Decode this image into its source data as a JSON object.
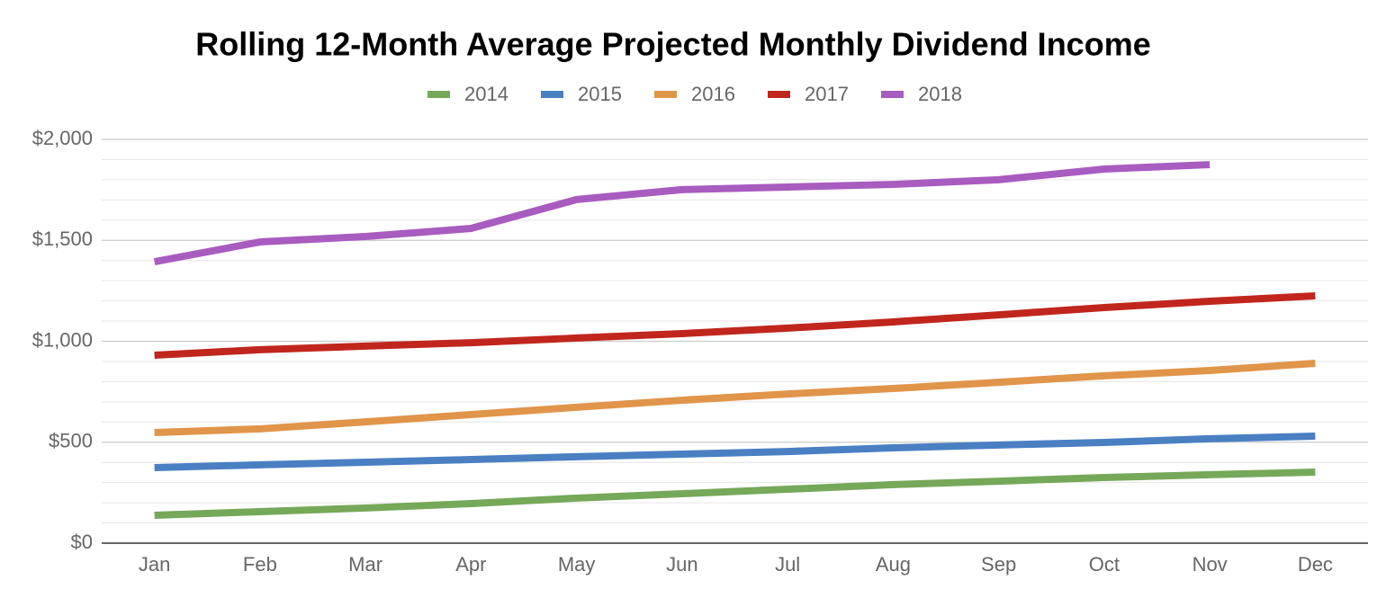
{
  "chart_data": {
    "type": "line",
    "title": "Rolling 12-Month Average Projected Monthly Dividend Income",
    "categories": [
      "Jan",
      "Feb",
      "Mar",
      "Apr",
      "May",
      "Jun",
      "Jul",
      "Aug",
      "Sep",
      "Oct",
      "Nov",
      "Dec"
    ],
    "series": [
      {
        "name": "2014",
        "color": "#76a85a",
        "values": [
          138,
          156,
          174,
          196,
          223,
          245,
          267,
          290,
          307,
          325,
          339,
          352
        ]
      },
      {
        "name": "2015",
        "color": "#4a80c2",
        "values": [
          374,
          388,
          401,
          414,
          428,
          441,
          454,
          472,
          486,
          499,
          517,
          530
        ]
      },
      {
        "name": "2016",
        "color": "#e0954a",
        "values": [
          548,
          566,
          601,
          637,
          673,
          708,
          739,
          766,
          797,
          829,
          855,
          891
        ]
      },
      {
        "name": "2017",
        "color": "#c0261d",
        "values": [
          931,
          958,
          976,
          993,
          1016,
          1038,
          1065,
          1096,
          1131,
          1167,
          1198,
          1225
        ]
      },
      {
        "name": "2018",
        "color": "#a85cbf",
        "values": [
          1394,
          1492,
          1519,
          1559,
          1702,
          1751,
          1764,
          1777,
          1800,
          1853,
          1875,
          null
        ]
      }
    ],
    "ylim": [
      0,
      2000
    ],
    "yticks": [
      {
        "value": 0,
        "label": "$0"
      },
      {
        "value": 500,
        "label": "$500"
      },
      {
        "value": 1000,
        "label": "$1,000"
      },
      {
        "value": 1500,
        "label": "$1,500"
      },
      {
        "value": 2000,
        "label": "$2,000"
      }
    ],
    "minor_yticks": [
      100,
      200,
      300,
      400,
      600,
      700,
      800,
      900,
      1100,
      1200,
      1300,
      1400,
      1600,
      1700,
      1800,
      1900
    ],
    "grid": true,
    "legend": "top"
  }
}
